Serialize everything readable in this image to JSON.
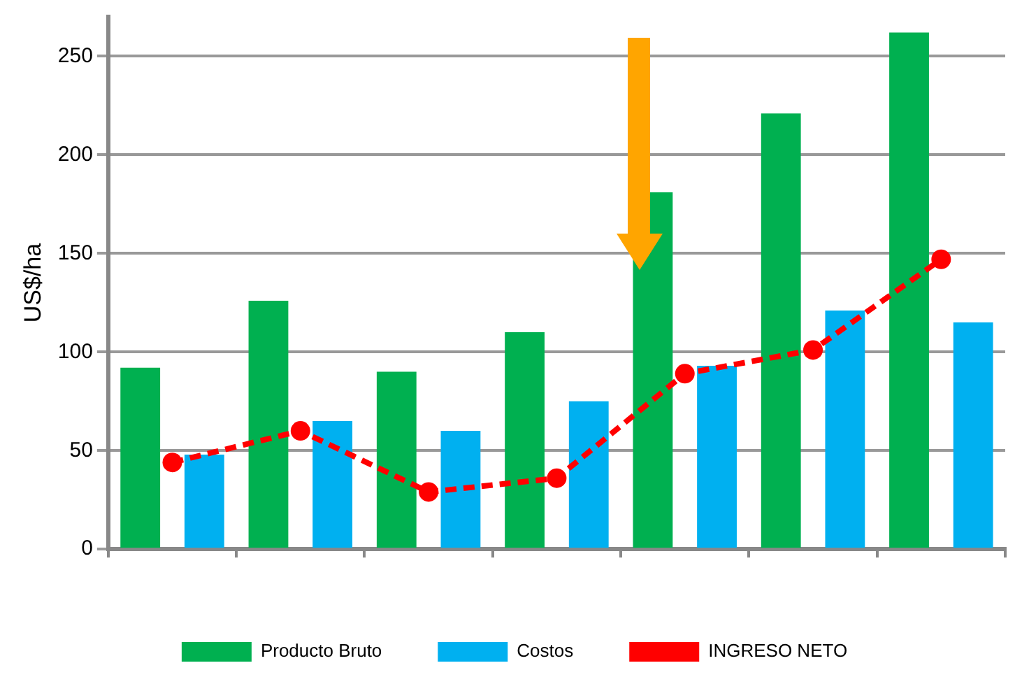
{
  "chart_data": {
    "type": "bar",
    "ylabel": "US$/ha",
    "categories": [
      null,
      null,
      null,
      null,
      null,
      null,
      null
    ],
    "series": [
      {
        "name": "Producto Bruto",
        "color": "#00b050",
        "values": [
          92,
          126,
          90,
          110,
          181,
          221,
          262
        ]
      },
      {
        "name": "Costos",
        "color": "#00b0f0",
        "values": [
          48,
          65,
          60,
          75,
          93,
          121,
          115
        ]
      },
      {
        "name": "INGRESO NETO",
        "type": "line",
        "color": "#ff0000",
        "marker": "circle",
        "line_style": "dashed",
        "values": [
          44,
          60,
          29,
          36,
          89,
          101,
          147
        ]
      }
    ],
    "ylim": [
      0,
      270
    ],
    "yticks": [
      0,
      50,
      100,
      150,
      200,
      250
    ],
    "grid": "y",
    "legend": "bottom"
  }
}
